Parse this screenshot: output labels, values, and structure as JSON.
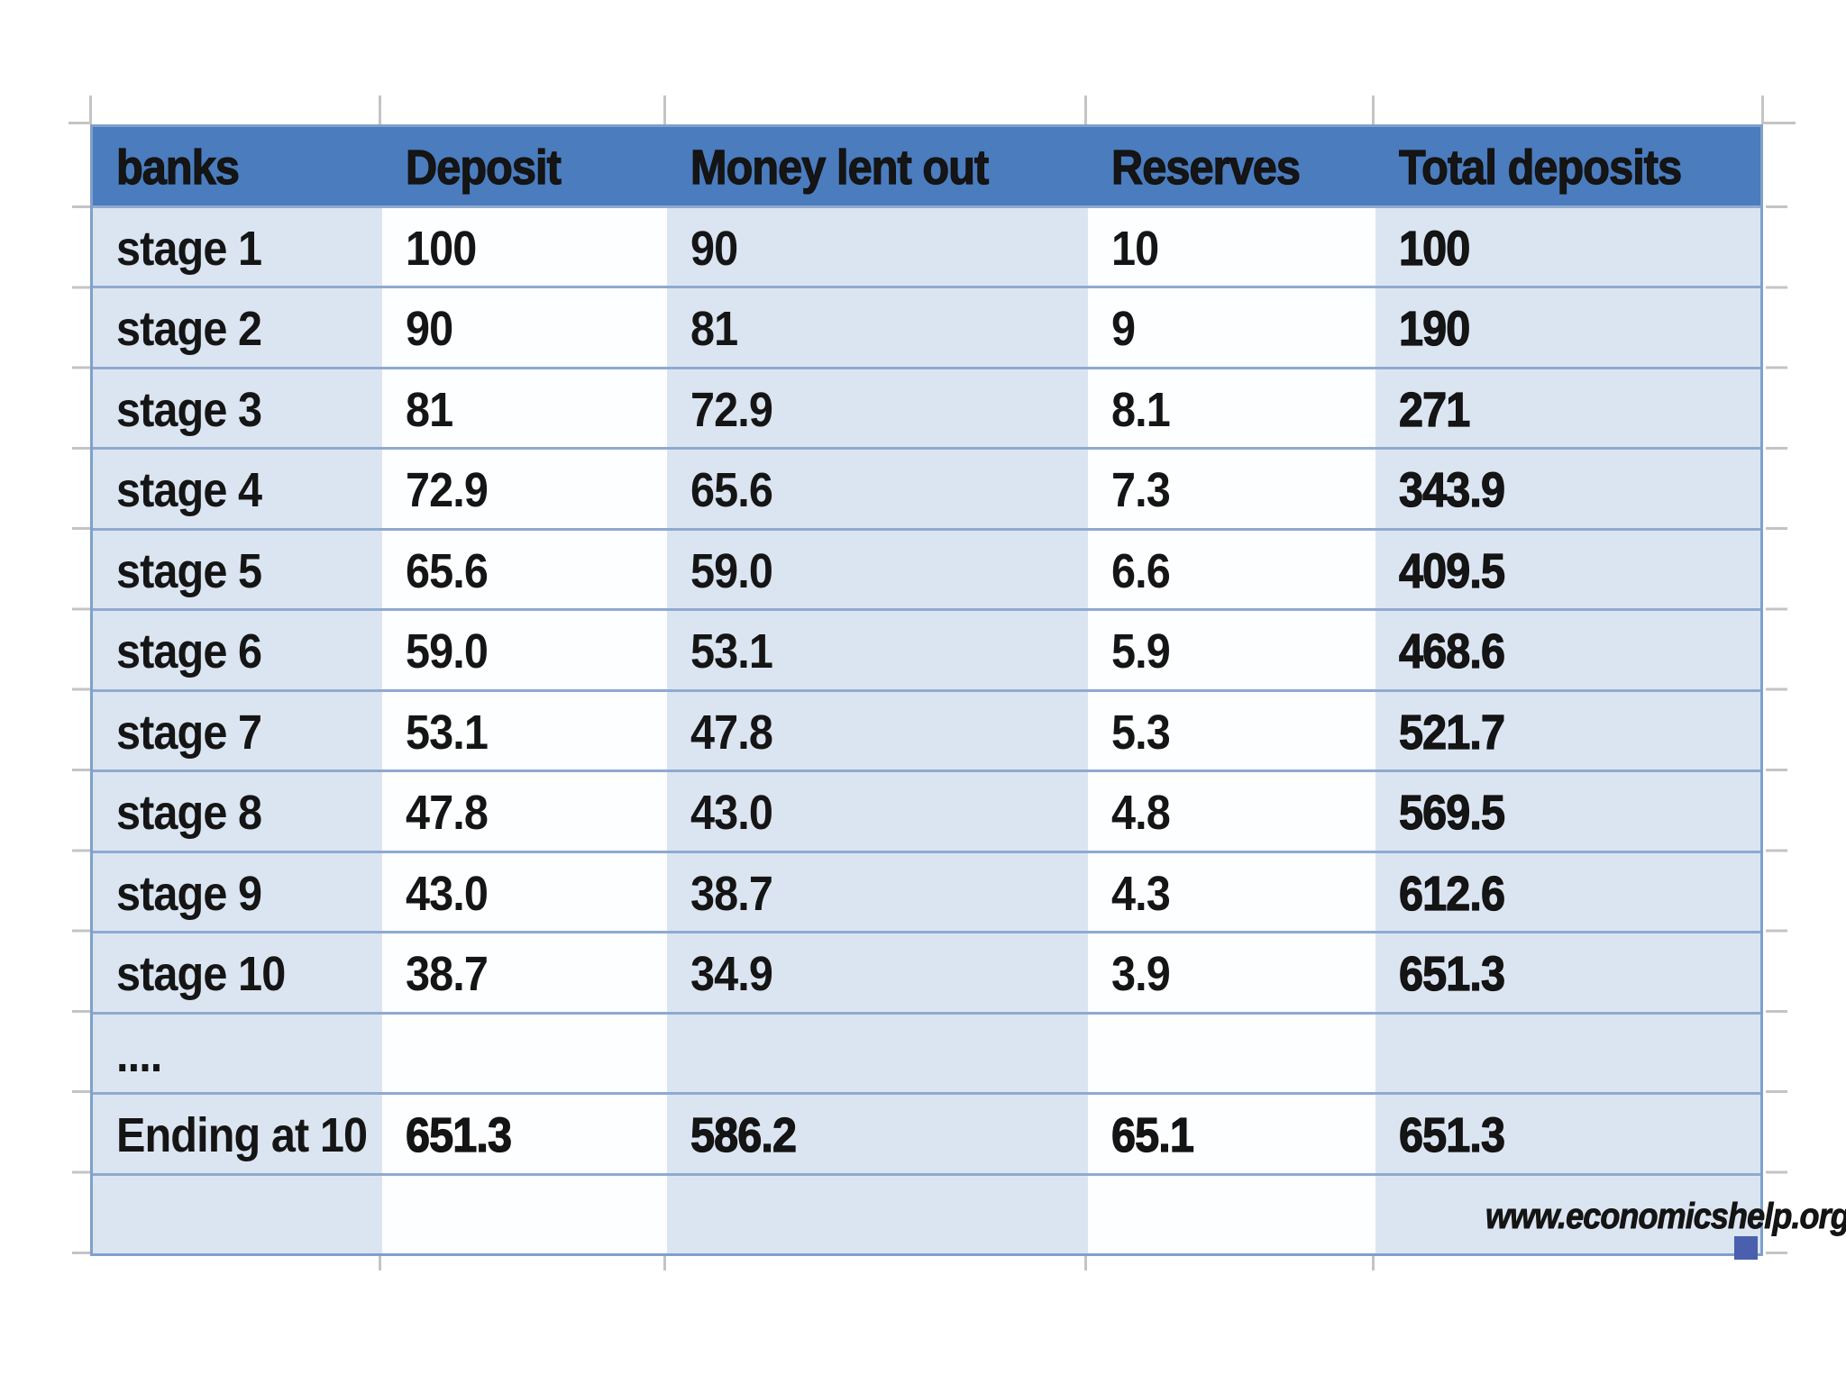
{
  "chart_data": {
    "type": "table",
    "title": "",
    "columns": [
      {
        "key": "banks",
        "label": "banks",
        "fill": "tint"
      },
      {
        "key": "deposit",
        "label": "Deposit",
        "fill": "white"
      },
      {
        "key": "money_lent_out",
        "label": "Money lent out",
        "fill": "tint"
      },
      {
        "key": "reserves",
        "label": "Reserves",
        "fill": "white"
      },
      {
        "key": "total_deposits",
        "label": "Total deposits",
        "fill": "tint",
        "values_bold": true
      }
    ],
    "rows": [
      {
        "banks": "stage 1",
        "deposit": "100",
        "money_lent_out": "90",
        "reserves": "10",
        "total_deposits": "100"
      },
      {
        "banks": "stage 2",
        "deposit": "90",
        "money_lent_out": "81",
        "reserves": "9",
        "total_deposits": "190"
      },
      {
        "banks": "stage 3",
        "deposit": "81",
        "money_lent_out": "72.9",
        "reserves": "8.1",
        "total_deposits": "271"
      },
      {
        "banks": "stage 4",
        "deposit": "72.9",
        "money_lent_out": "65.6",
        "reserves": "7.3",
        "total_deposits": "343.9"
      },
      {
        "banks": "stage 5",
        "deposit": "65.6",
        "money_lent_out": "59.0",
        "reserves": "6.6",
        "total_deposits": "409.5"
      },
      {
        "banks": "stage 6",
        "deposit": "59.0",
        "money_lent_out": "53.1",
        "reserves": "5.9",
        "total_deposits": "468.6"
      },
      {
        "banks": "stage 7",
        "deposit": "53.1",
        "money_lent_out": "47.8",
        "reserves": "5.3",
        "total_deposits": "521.7"
      },
      {
        "banks": "stage 8",
        "deposit": "47.8",
        "money_lent_out": "43.0",
        "reserves": "4.8",
        "total_deposits": "569.5"
      },
      {
        "banks": "stage 9",
        "deposit": "43.0",
        "money_lent_out": "38.7",
        "reserves": "4.3",
        "total_deposits": "612.6"
      },
      {
        "banks": "stage 10",
        "deposit": "38.7",
        "money_lent_out": "34.9",
        "reserves": "3.9",
        "total_deposits": "651.3"
      },
      {
        "banks": "....",
        "deposit": "",
        "money_lent_out": "",
        "reserves": "",
        "total_deposits": ""
      },
      {
        "banks": "Ending at 10",
        "deposit": "651.3",
        "money_lent_out": "586.2",
        "reserves": "65.1",
        "total_deposits": "651.3",
        "values_bold": true
      },
      {
        "banks": "",
        "deposit": "",
        "money_lent_out": "",
        "reserves": "",
        "total_deposits": "www.economicshelp.org",
        "note_row": true
      }
    ],
    "watermark": "www.economicshelp.org",
    "layout": {
      "grid": "off",
      "legend": "none"
    },
    "colors": {
      "header_bg": "#4A7CBE",
      "tint_cell_bg": "#DBE5F1",
      "white_cell_bg": "#FDFEFF",
      "row_separator": "#8FAAD0",
      "outer_border": "#7FA0CC",
      "gridline_tick": "#C4C4C4",
      "selection_handle": "#4A5FAE",
      "text": "#151515"
    }
  }
}
